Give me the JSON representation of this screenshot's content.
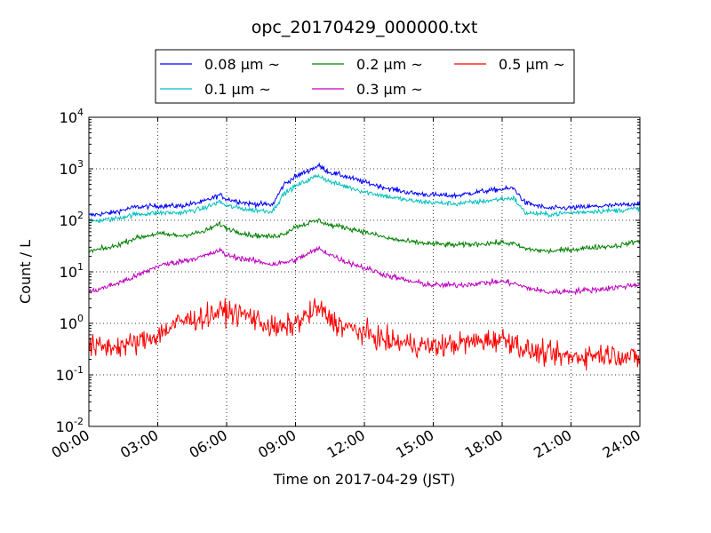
{
  "chart_data": {
    "type": "line",
    "title": "opc_20170429_000000.txt",
    "xlabel": "Time on 2017-04-29 (JST)",
    "ylabel": "Count / L",
    "xlim": [
      "2017-04-29T00:00",
      "2017-04-30T00:00"
    ],
    "ylim": [
      0.01,
      10000
    ],
    "y_scale": "log",
    "grid": true,
    "legend_position": "top",
    "x_tick_labels": [
      "00:00",
      "03:00",
      "06:00",
      "09:00",
      "12:00",
      "15:00",
      "18:00",
      "21:00",
      "24:00"
    ],
    "y_ticks": [
      {
        "base": "10",
        "exp": "-2"
      },
      {
        "base": "10",
        "exp": "-1"
      },
      {
        "base": "10",
        "exp": "0"
      },
      {
        "base": "10",
        "exp": "1"
      },
      {
        "base": "10",
        "exp": "2"
      },
      {
        "base": "10",
        "exp": "3"
      },
      {
        "base": "10",
        "exp": "4"
      }
    ],
    "x_hours": [
      0,
      1,
      2,
      3,
      4,
      5,
      5.7,
      6,
      7,
      8,
      8.5,
      9,
      10,
      10.5,
      11,
      12,
      13,
      14,
      15,
      16,
      17,
      18,
      18.5,
      19,
      20,
      21,
      22,
      23,
      24
    ],
    "series": [
      {
        "name": "0.08 μm ~",
        "color": "#0000ff",
        "noise": 0.035,
        "values": [
          125,
          140,
          180,
          190,
          190,
          230,
          310,
          260,
          210,
          200,
          500,
          700,
          1150,
          850,
          750,
          550,
          420,
          340,
          310,
          300,
          360,
          400,
          420,
          220,
          170,
          175,
          185,
          195,
          215
        ]
      },
      {
        "name": "0.1 μm ~",
        "color": "#00bfbf",
        "noise": 0.035,
        "values": [
          95,
          105,
          130,
          140,
          140,
          170,
          230,
          190,
          160,
          150,
          330,
          460,
          750,
          560,
          480,
          360,
          290,
          240,
          220,
          210,
          230,
          260,
          270,
          140,
          130,
          140,
          150,
          155,
          170
        ]
      },
      {
        "name": "0.2 μm ~",
        "color": "#008000",
        "noise": 0.035,
        "values": [
          25,
          30,
          45,
          55,
          50,
          60,
          85,
          70,
          52,
          48,
          55,
          75,
          100,
          80,
          75,
          60,
          45,
          38,
          35,
          33,
          35,
          37,
          35,
          28,
          25,
          27,
          30,
          32,
          40
        ]
      },
      {
        "name": "0.3 μm ~",
        "color": "#bf00bf",
        "noise": 0.04,
        "values": [
          4.0,
          5.5,
          8,
          13,
          16,
          20,
          26,
          21,
          17,
          14,
          15,
          17,
          28,
          22,
          17,
          12,
          8.5,
          6.5,
          5.5,
          5.5,
          6,
          6.5,
          6,
          5,
          4,
          4.2,
          4.5,
          5,
          5.8
        ]
      },
      {
        "name": "0.5 μm ~",
        "color": "#ff0000",
        "noise": 0.16,
        "values": [
          0.35,
          0.35,
          0.4,
          0.6,
          1.1,
          1.3,
          1.7,
          1.7,
          1.4,
          0.8,
          0.8,
          1.0,
          2.0,
          1.2,
          0.9,
          0.65,
          0.45,
          0.4,
          0.35,
          0.4,
          0.45,
          0.5,
          0.45,
          0.3,
          0.25,
          0.22,
          0.25,
          0.25,
          0.2
        ]
      }
    ]
  }
}
